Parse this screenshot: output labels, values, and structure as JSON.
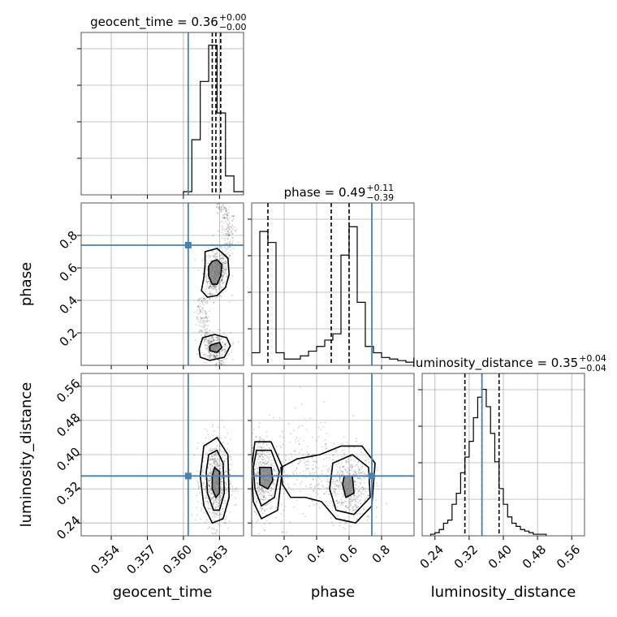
{
  "chart_data": {
    "type": "corner",
    "parameters": [
      "geocent_time",
      "phase",
      "luminosity_distance"
    ],
    "truth_color": "#4682b4",
    "panels": {
      "geocent_time": {
        "title": {
          "main": "geocent_time = 0.36",
          "sup": "+0.00",
          "sub": "−0.00"
        },
        "range": [
          0.3515,
          0.365
        ],
        "ticks": [
          0.354,
          0.357,
          0.36,
          0.363
        ],
        "tick_labels": [
          "0.354",
          "0.357",
          "0.360",
          "0.363"
        ],
        "truth": 0.3604,
        "quantiles": [
          0.3624,
          0.3627,
          0.3631
        ],
        "hist": {
          "edges": [
            0.36,
            0.3607,
            0.3614,
            0.3621,
            0.3628,
            0.3635,
            0.3642,
            0.365
          ],
          "heights": [
            0.02,
            0.35,
            0.72,
            0.95,
            0.52,
            0.12,
            0.02
          ]
        }
      },
      "phase": {
        "title": {
          "main": "phase = 0.49",
          "sup": "+0.11",
          "sub": "−0.39"
        },
        "range": [
          0.0,
          1.0
        ],
        "ticks": [
          0.2,
          0.4,
          0.6,
          0.8
        ],
        "tick_labels": [
          "0.2",
          "0.4",
          "0.6",
          "0.8"
        ],
        "truth": 0.74,
        "quantiles": [
          0.1,
          0.49,
          0.6
        ],
        "hist": {
          "edges": [
            0.0,
            0.05,
            0.1,
            0.15,
            0.2,
            0.25,
            0.3,
            0.35,
            0.4,
            0.45,
            0.5,
            0.55,
            0.6,
            0.65,
            0.7,
            0.75,
            0.8,
            0.85,
            0.9,
            0.95,
            1.0
          ],
          "heights": [
            0.08,
            0.85,
            0.78,
            0.08,
            0.04,
            0.04,
            0.06,
            0.09,
            0.12,
            0.16,
            0.2,
            0.7,
            0.88,
            0.4,
            0.12,
            0.08,
            0.05,
            0.04,
            0.03,
            0.02
          ]
        }
      },
      "luminosity_distance": {
        "title": {
          "main": "luminosity_distance = 0.35",
          "sup": "+0.04",
          "sub": "−0.04"
        },
        "range": [
          0.21,
          0.59
        ],
        "ticks": [
          0.24,
          0.32,
          0.4,
          0.48,
          0.56
        ],
        "tick_labels": [
          "0.24",
          "0.32",
          "0.40",
          "0.48",
          "0.56"
        ],
        "truth": 0.35,
        "quantiles": [
          0.31,
          0.35,
          0.39
        ],
        "hist": {
          "edges": [
            0.23,
            0.24,
            0.25,
            0.26,
            0.27,
            0.28,
            0.29,
            0.3,
            0.31,
            0.32,
            0.33,
            0.34,
            0.35,
            0.36,
            0.37,
            0.38,
            0.39,
            0.4,
            0.41,
            0.42,
            0.43,
            0.44,
            0.45,
            0.46,
            0.47,
            0.48,
            0.49,
            0.5
          ],
          "heights": [
            0.01,
            0.02,
            0.04,
            0.08,
            0.1,
            0.2,
            0.27,
            0.4,
            0.5,
            0.6,
            0.75,
            0.88,
            0.93,
            0.82,
            0.65,
            0.47,
            0.3,
            0.2,
            0.12,
            0.08,
            0.06,
            0.04,
            0.03,
            0.02,
            0.01,
            0.01,
            0.01
          ]
        }
      }
    },
    "pairs": [
      {
        "x": "geocent_time",
        "y": "phase",
        "truth_xy": [
          0.3604,
          0.74
        ],
        "contours": [
          [
            [
              0.3624,
              0.64
            ],
            [
              0.3628,
              0.65
            ],
            [
              0.3632,
              0.62
            ],
            [
              0.3631,
              0.55
            ],
            [
              0.3628,
              0.5
            ],
            [
              0.3624,
              0.5
            ],
            [
              0.3621,
              0.55
            ],
            [
              0.3621,
              0.61
            ]
          ],
          [
            [
              0.3618,
              0.7
            ],
            [
              0.3628,
              0.72
            ],
            [
              0.3637,
              0.66
            ],
            [
              0.3638,
              0.56
            ],
            [
              0.3635,
              0.48
            ],
            [
              0.3628,
              0.43
            ],
            [
              0.362,
              0.42
            ],
            [
              0.3615,
              0.46
            ],
            [
              0.3617,
              0.54
            ],
            [
              0.3618,
              0.62
            ]
          ],
          [
            [
              0.3625,
              0.13
            ],
            [
              0.363,
              0.14
            ],
            [
              0.3632,
              0.11
            ],
            [
              0.3628,
              0.08
            ],
            [
              0.3622,
              0.09
            ],
            [
              0.3622,
              0.12
            ]
          ],
          [
            [
              0.3616,
              0.17
            ],
            [
              0.3626,
              0.19
            ],
            [
              0.3636,
              0.17
            ],
            [
              0.3639,
              0.12
            ],
            [
              0.3634,
              0.05
            ],
            [
              0.3622,
              0.03
            ],
            [
              0.3614,
              0.05
            ],
            [
              0.3613,
              0.1
            ]
          ]
        ]
      },
      {
        "x": "geocent_time",
        "y": "luminosity_distance",
        "truth_xy": [
          0.3604,
          0.35
        ],
        "contours": [
          [
            [
              0.3626,
              0.37
            ],
            [
              0.363,
              0.36
            ],
            [
              0.363,
              0.31
            ],
            [
              0.3627,
              0.3
            ],
            [
              0.3624,
              0.32
            ],
            [
              0.3624,
              0.35
            ]
          ],
          [
            [
              0.3621,
              0.4
            ],
            [
              0.3628,
              0.41
            ],
            [
              0.3633,
              0.38
            ],
            [
              0.3634,
              0.31
            ],
            [
              0.363,
              0.27
            ],
            [
              0.3625,
              0.27
            ],
            [
              0.362,
              0.31
            ],
            [
              0.3619,
              0.36
            ]
          ],
          [
            [
              0.3617,
              0.42
            ],
            [
              0.3628,
              0.44
            ],
            [
              0.3637,
              0.4
            ],
            [
              0.3638,
              0.3
            ],
            [
              0.3633,
              0.25
            ],
            [
              0.3624,
              0.24
            ],
            [
              0.3617,
              0.28
            ],
            [
              0.3614,
              0.35
            ]
          ]
        ]
      },
      {
        "x": "phase",
        "y": "luminosity_distance",
        "truth_xy": [
          0.74,
          0.35
        ],
        "contours": [
          [
            [
              0.05,
              0.37
            ],
            [
              0.12,
              0.37
            ],
            [
              0.13,
              0.34
            ],
            [
              0.1,
              0.32
            ],
            [
              0.05,
              0.33
            ]
          ],
          [
            [
              0.03,
              0.41
            ],
            [
              0.12,
              0.41
            ],
            [
              0.17,
              0.36
            ],
            [
              0.14,
              0.3
            ],
            [
              0.06,
              0.28
            ],
            [
              0.02,
              0.32
            ],
            [
              0.01,
              0.37
            ]
          ],
          [
            [
              0.02,
              0.43
            ],
            [
              0.12,
              0.43
            ],
            [
              0.19,
              0.37
            ],
            [
              0.16,
              0.27
            ],
            [
              0.06,
              0.25
            ],
            [
              0.01,
              0.29
            ],
            [
              0.0,
              0.37
            ]
          ],
          [
            [
              0.57,
              0.35
            ],
            [
              0.62,
              0.35
            ],
            [
              0.63,
              0.31
            ],
            [
              0.58,
              0.3
            ],
            [
              0.56,
              0.33
            ]
          ],
          [
            [
              0.5,
              0.38
            ],
            [
              0.62,
              0.4
            ],
            [
              0.72,
              0.37
            ],
            [
              0.73,
              0.3
            ],
            [
              0.63,
              0.26
            ],
            [
              0.52,
              0.27
            ],
            [
              0.48,
              0.32
            ]
          ],
          [
            [
              0.18,
              0.37
            ],
            [
              0.28,
              0.39
            ],
            [
              0.42,
              0.4
            ],
            [
              0.55,
              0.42
            ],
            [
              0.68,
              0.42
            ],
            [
              0.76,
              0.38
            ],
            [
              0.74,
              0.28
            ],
            [
              0.64,
              0.24
            ],
            [
              0.52,
              0.25
            ],
            [
              0.43,
              0.29
            ],
            [
              0.33,
              0.3
            ],
            [
              0.24,
              0.3
            ],
            [
              0.19,
              0.33
            ]
          ]
        ]
      }
    ]
  }
}
